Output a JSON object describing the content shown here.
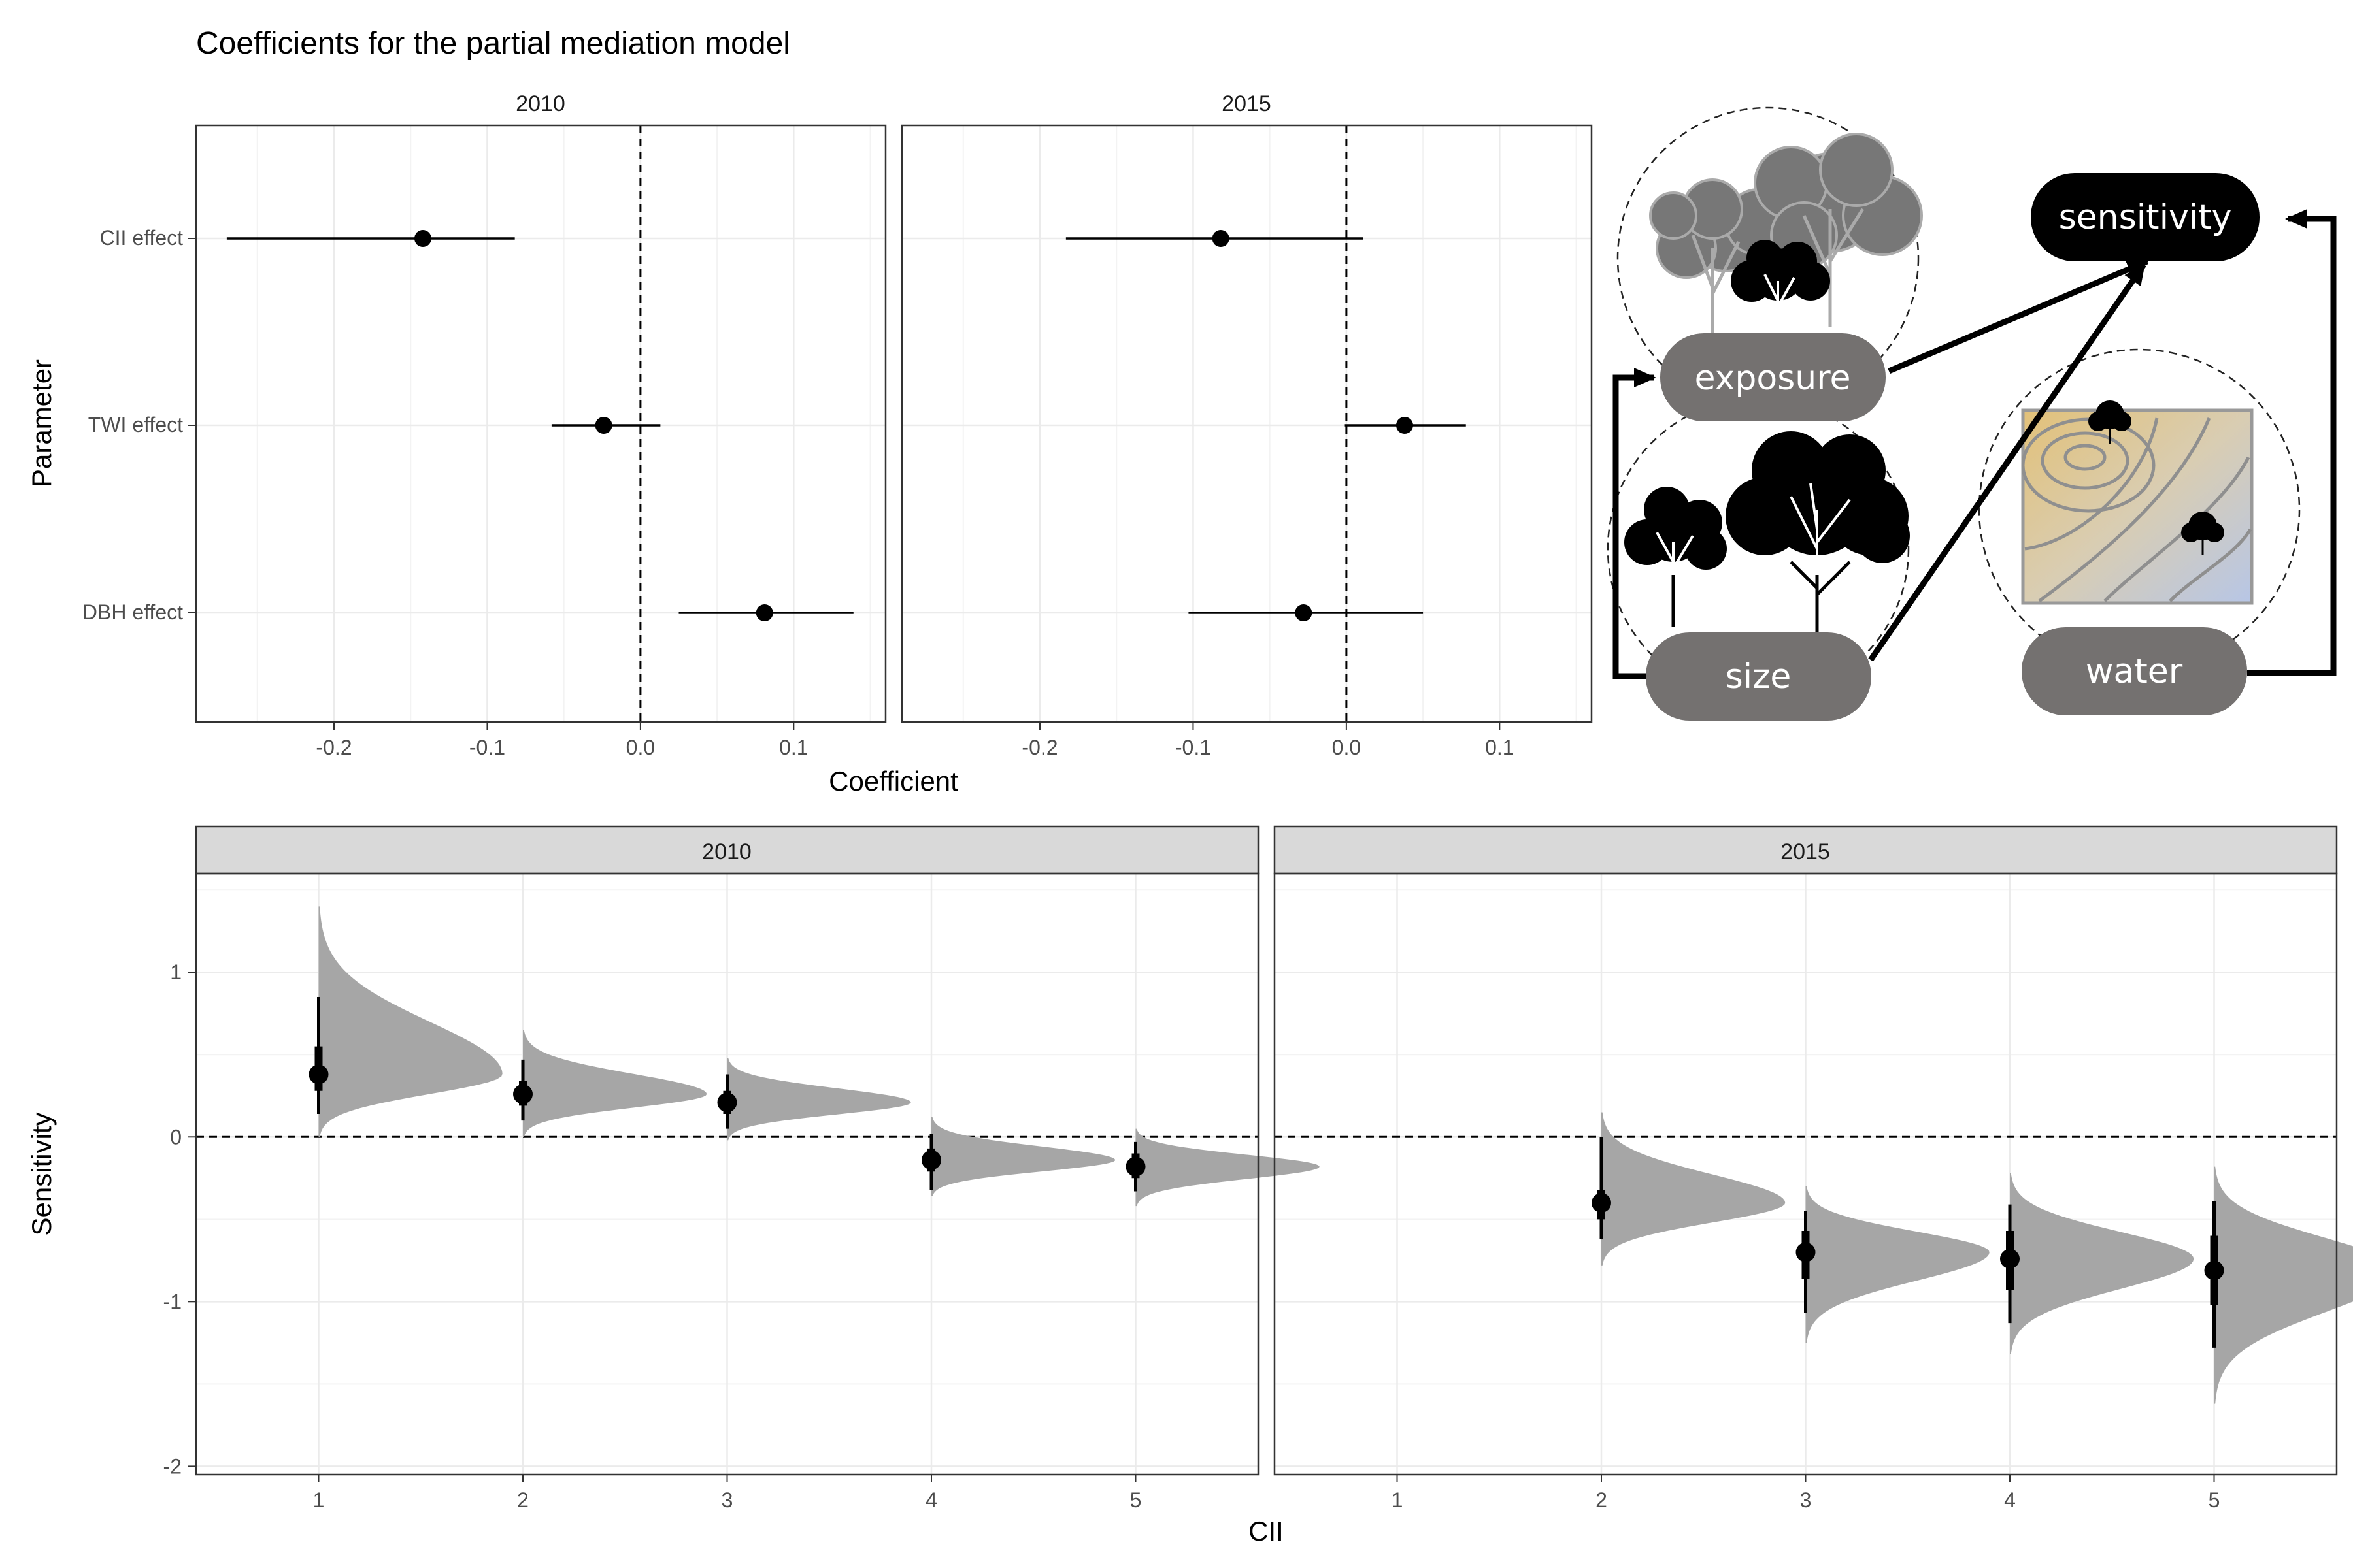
{
  "figure": {
    "title": "Coefficients for the partial mediation model"
  },
  "chart_data": [
    {
      "type": "scatter",
      "subtype": "coefficient-interval",
      "facets": [
        "2010",
        "2015"
      ],
      "parameters": [
        "CII effect",
        "TWI effect",
        "DBH effect"
      ],
      "xlabel": "Coefficient",
      "ylabel": "Parameter",
      "xlim": [
        -0.29,
        0.16
      ],
      "xticks": [
        -0.2,
        -0.1,
        0.0,
        0.1
      ],
      "xtick_labels": [
        "-0.2",
        "-0.1",
        "0.0",
        "0.1"
      ],
      "reference_line": 0,
      "grid": true,
      "data": {
        "2010": [
          {
            "parameter": "CII effect",
            "estimate": -0.142,
            "low": -0.27,
            "high": -0.082
          },
          {
            "parameter": "TWI effect",
            "estimate": -0.024,
            "low": -0.058,
            "high": 0.013
          },
          {
            "parameter": "DBH effect",
            "estimate": 0.081,
            "low": 0.025,
            "high": 0.139
          }
        ],
        "2015": [
          {
            "parameter": "CII effect",
            "estimate": -0.082,
            "low": -0.183,
            "high": 0.011
          },
          {
            "parameter": "TWI effect",
            "estimate": 0.038,
            "low": -0.001,
            "high": 0.078
          },
          {
            "parameter": "DBH effect",
            "estimate": -0.028,
            "low": -0.103,
            "high": 0.05
          }
        ]
      }
    },
    {
      "type": "area",
      "subtype": "half-eye-distribution",
      "facets": [
        "2010",
        "2015"
      ],
      "xlabel": "CII",
      "ylabel": "Sensitivity",
      "x": [
        1,
        2,
        3,
        4,
        5
      ],
      "xlim": [
        0.4,
        5.6
      ],
      "ylim": [
        -2.05,
        1.6
      ],
      "yticks": [
        -2,
        -1,
        0,
        1
      ],
      "reference_line": 0,
      "grid": true,
      "data": {
        "2010": [
          {
            "cii": 1,
            "median": 0.38,
            "q66": [
              0.28,
              0.55
            ],
            "q95": [
              0.14,
              0.85
            ],
            "dist_range": [
              0.0,
              1.4
            ]
          },
          {
            "cii": 2,
            "median": 0.26,
            "q66": [
              0.19,
              0.34
            ],
            "q95": [
              0.1,
              0.47
            ],
            "dist_range": [
              0.0,
              0.65
            ]
          },
          {
            "cii": 3,
            "median": 0.21,
            "q66": [
              0.14,
              0.28
            ],
            "q95": [
              0.05,
              0.38
            ],
            "dist_range": [
              -0.02,
              0.48
            ]
          },
          {
            "cii": 4,
            "median": -0.14,
            "q66": [
              -0.21,
              -0.07
            ],
            "q95": [
              -0.32,
              0.02
            ],
            "dist_range": [
              -0.36,
              0.12
            ]
          },
          {
            "cii": 5,
            "median": -0.18,
            "q66": [
              -0.25,
              -0.1
            ],
            "q95": [
              -0.33,
              -0.03
            ],
            "dist_range": [
              -0.42,
              0.05
            ]
          }
        ],
        "2015": [
          {
            "cii": 2,
            "median": -0.4,
            "q66": [
              -0.5,
              -0.32
            ],
            "q95": [
              -0.62,
              0.0
            ],
            "dist_range": [
              -0.78,
              0.15
            ]
          },
          {
            "cii": 3,
            "median": -0.7,
            "q66": [
              -0.86,
              -0.57
            ],
            "q95": [
              -1.07,
              -0.45
            ],
            "dist_range": [
              -1.25,
              -0.3
            ]
          },
          {
            "cii": 4,
            "median": -0.74,
            "q66": [
              -0.93,
              -0.57
            ],
            "q95": [
              -1.13,
              -0.41
            ],
            "dist_range": [
              -1.32,
              -0.22
            ]
          },
          {
            "cii": 5,
            "median": -0.81,
            "q66": [
              -1.02,
              -0.6
            ],
            "q95": [
              -1.28,
              -0.39
            ],
            "dist_range": [
              -1.62,
              -0.18
            ]
          }
        ]
      }
    }
  ],
  "diagram": {
    "nodes": [
      "sensitivity",
      "exposure",
      "size",
      "water"
    ]
  },
  "colors": {
    "node_fill": "#747170",
    "sensitivity_fill": "#000000",
    "density": "#a6a6a6",
    "strip": "#d9d9d9",
    "grid": "#ebebeb"
  }
}
